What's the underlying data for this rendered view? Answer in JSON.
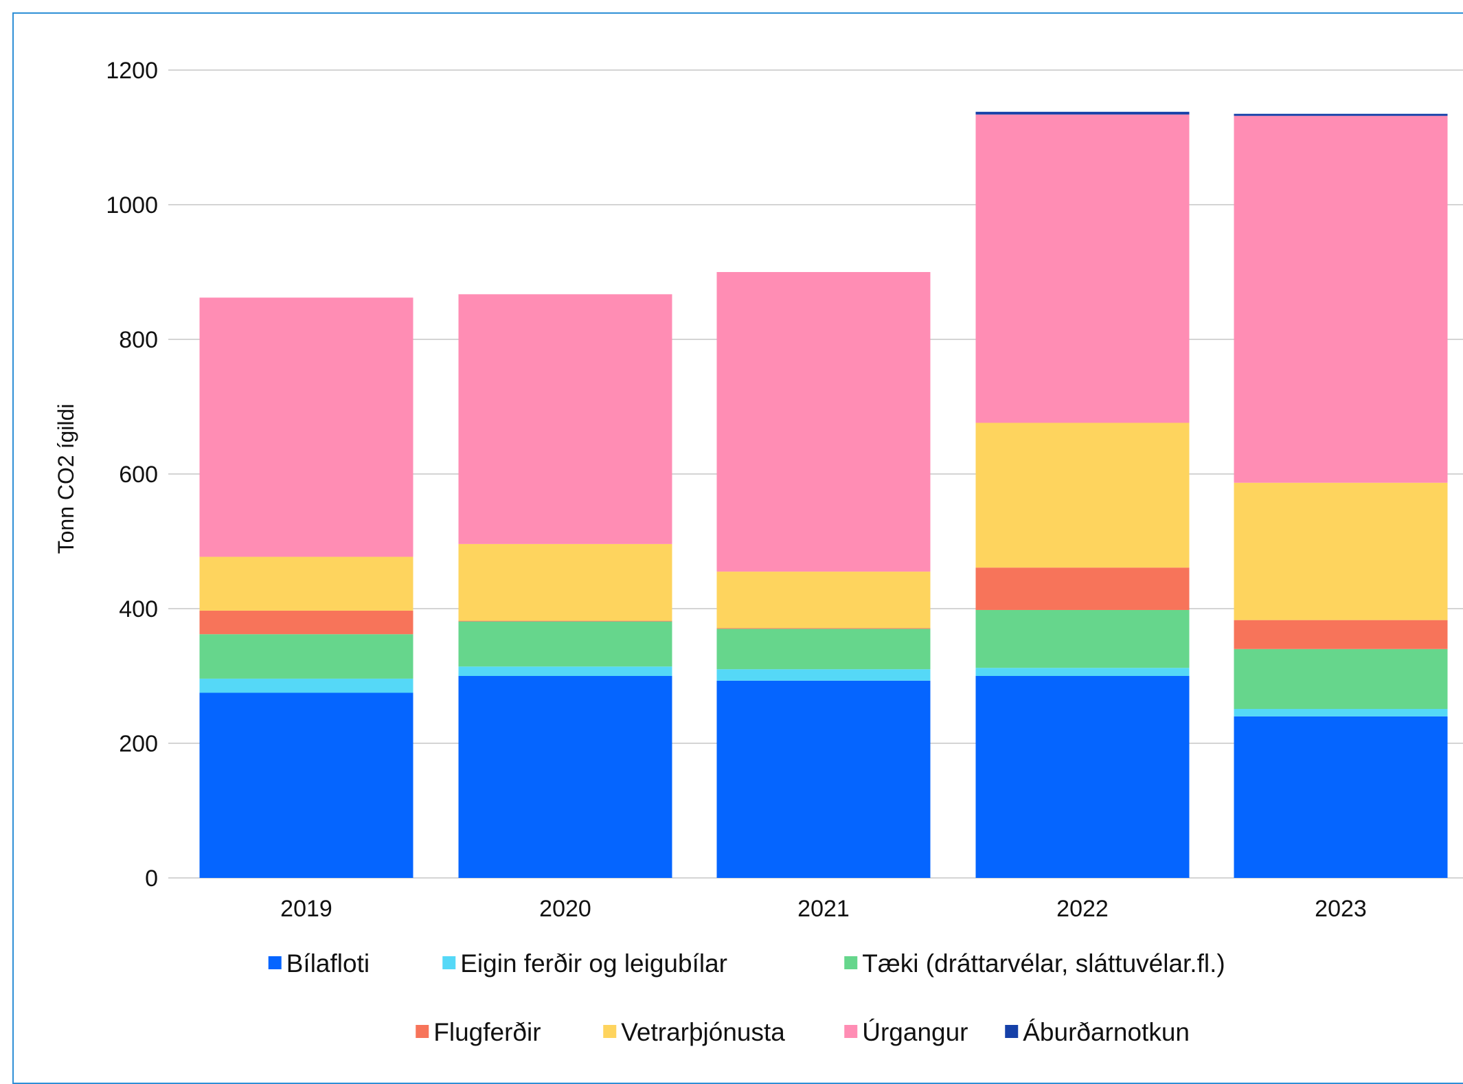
{
  "chart_data": {
    "type": "bar",
    "stacked": true,
    "categories": [
      "2019",
      "2020",
      "2021",
      "2022",
      "2023"
    ],
    "ylabel": "Tonn CO2 ígildi",
    "xlabel": "",
    "ylim": [
      0,
      1200
    ],
    "yticks": [
      "0",
      "200",
      "400",
      "600",
      "800",
      "1000",
      "1200"
    ],
    "grid": true,
    "legend_position": "bottom",
    "series": [
      {
        "name": "Bílafloti",
        "color": "#0565ff",
        "values": [
          275,
          300,
          293,
          300,
          240
        ]
      },
      {
        "name": "Eigin ferðir og leigubílar",
        "color": "#55d8f7",
        "values": [
          21,
          14,
          17,
          12,
          11
        ]
      },
      {
        "name": "Tæki (dráttarvélar, sláttuvélar.fl.)",
        "color": "#66d68c",
        "values": [
          66,
          67,
          60,
          86,
          89
        ]
      },
      {
        "name": "Flugferðir",
        "color": "#f7745a",
        "values": [
          35,
          1,
          1,
          63,
          43
        ]
      },
      {
        "name": "Vetrarþjónusta",
        "color": "#fed45e",
        "values": [
          80,
          114,
          84,
          215,
          204
        ]
      },
      {
        "name": "Úrgangur",
        "color": "#ff8db4",
        "values": [
          385,
          371,
          445,
          458,
          545
        ]
      },
      {
        "name": "Áburðarnotkun",
        "color": "#1540a8",
        "values": [
          0,
          0,
          0,
          4,
          3
        ]
      }
    ]
  }
}
